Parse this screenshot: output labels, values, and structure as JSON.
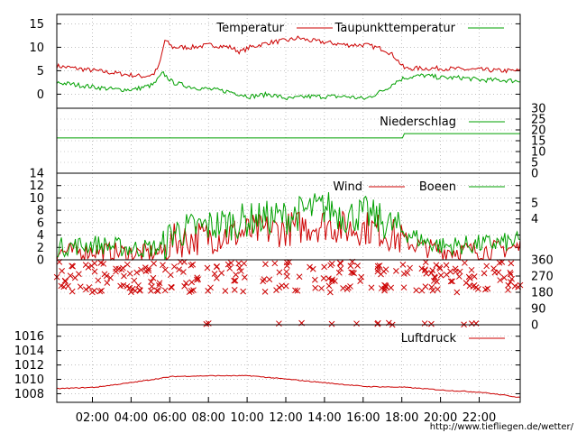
{
  "chart_data": {
    "type": "line",
    "time_ticks": [
      "02:00",
      "04:00",
      "06:00",
      "08:00",
      "10:00",
      "12:00",
      "14:00",
      "16:00",
      "18:00",
      "20:00",
      "22:00"
    ],
    "footer_url": "http://www.tiefliegen.de/wetter/",
    "colors": {
      "red": "#cc0000",
      "green": "#00a000",
      "grid": "#999999"
    },
    "panels": [
      {
        "id": "temperature",
        "ylim": [
          -3,
          17
        ],
        "yticks_left": [
          "15",
          "10",
          "5",
          "0"
        ],
        "yticks_left_values": [
          15,
          10,
          5,
          0
        ],
        "legend": [
          {
            "label": "Temperatur",
            "color": "#cc0000"
          },
          {
            "label": "Taupunkttemperatur",
            "color": "#00a000"
          }
        ],
        "series": [
          {
            "name": "Temperatur",
            "color": "#cc0000",
            "x_hours": [
              0,
              1,
              2,
              3,
              4,
              4.5,
              5,
              5.3,
              5.6,
              6,
              7,
              8,
              9,
              9.5,
              10,
              11,
              12,
              12.5,
              13,
              14,
              15,
              16,
              17,
              17.5,
              18,
              19,
              20,
              21,
              22,
              23,
              24
            ],
            "values": [
              6,
              5.5,
              5,
              4.5,
              4,
              3.8,
              4.2,
              6,
              11.5,
              10,
              10,
              10.5,
              10,
              9,
              10,
              11,
              11.5,
              12,
              11.5,
              11,
              10.5,
              10.5,
              9.5,
              8,
              5.5,
              5.5,
              5.5,
              5.3,
              5.2,
              5,
              5
            ]
          },
          {
            "name": "Taupunkttemperatur",
            "color": "#00a000",
            "x_hours": [
              0,
              1,
              2,
              3,
              4,
              5,
              5.5,
              6,
              7,
              8,
              9,
              10,
              11,
              12,
              13,
              14,
              15,
              16,
              17,
              17.5,
              18,
              19,
              20,
              21,
              22,
              23,
              24
            ],
            "values": [
              2.5,
              2,
              1.5,
              1,
              1,
              2,
              4.5,
              2.5,
              1.5,
              1,
              0.5,
              -0.5,
              0,
              -1,
              -0.5,
              -0.5,
              -0.5,
              -1,
              1,
              2.5,
              3.5,
              4,
              3.5,
              3.5,
              3,
              3,
              2.8
            ]
          }
        ]
      },
      {
        "id": "precipitation",
        "ylim": [
          0,
          30
        ],
        "yticks_right": [
          "30",
          "25",
          "20",
          "15",
          "10",
          "5",
          "0"
        ],
        "yticks_right_values": [
          30,
          25,
          20,
          15,
          10,
          5,
          0
        ],
        "legend": [
          {
            "label": "Niederschlag",
            "color": "#00a000"
          }
        ],
        "series": [
          {
            "name": "Niederschlag",
            "color": "#00a000",
            "x_hours": [
              0,
              17.9,
              18,
              24
            ],
            "values": [
              16.3,
              16.3,
              18.3,
              18.3
            ]
          }
        ]
      },
      {
        "id": "wind",
        "ylim": [
          0,
          14
        ],
        "yticks_left": [
          "14",
          "12",
          "10",
          "8",
          "6",
          "4",
          "2",
          "0"
        ],
        "yticks_left_values": [
          14,
          12,
          10,
          8,
          6,
          4,
          2,
          0
        ],
        "yticks_right": [
          "5",
          "4"
        ],
        "yticks_right_values": [
          9.2,
          6.6
        ],
        "legend": [
          {
            "label": "Wind",
            "color": "#cc0000"
          },
          {
            "label": "Boeen",
            "color": "#00a000"
          }
        ],
        "series": [
          {
            "name": "Wind",
            "color": "#cc0000",
            "x_hours": [
              0,
              2,
              4,
              5.5,
              6,
              8,
              10,
              12,
              13,
              14,
              15,
              16,
              17,
              18,
              19,
              20,
              22,
              24
            ],
            "values": [
              1.2,
              1.5,
              1,
              1.2,
              3,
              3.8,
              4.5,
              5,
              5.5,
              5.8,
              5,
              5.2,
              4.5,
              3,
              2,
              1.5,
              1.5,
              2
            ]
          },
          {
            "name": "Boeen",
            "color": "#00a000",
            "x_hours": [
              0,
              2,
              4,
              5.5,
              6,
              8,
              10,
              12,
              13,
              14,
              15,
              16,
              17,
              18,
              19,
              20,
              22,
              24
            ],
            "values": [
              2,
              2.5,
              1.8,
              2,
              4.5,
              5.5,
              6.5,
              7,
              8,
              8.5,
              7,
              7.5,
              6,
              4.5,
              3,
              2.2,
              2.5,
              3
            ]
          }
        ]
      },
      {
        "id": "direction",
        "ylim": [
          0,
          360
        ],
        "yticks_right": [
          "360",
          "270",
          "180",
          "90",
          "0"
        ],
        "yticks_right_values": [
          360,
          270,
          180,
          90,
          0
        ],
        "legend": [],
        "series": [
          {
            "name": "",
            "color": "#cc0000",
            "marker": "x",
            "bands_deg": [
              [
                290,
                350
              ],
              [
                230,
                300
              ],
              [
                180,
                220
              ],
              [
                0,
                10
              ],
              [
                40,
                60
              ]
            ]
          }
        ]
      },
      {
        "id": "pressure",
        "ylim": [
          1006.8,
          1017.6
        ],
        "yticks_left": [
          "1016",
          "1014",
          "1012",
          "1010",
          "1008"
        ],
        "yticks_left_values": [
          1016,
          1014,
          1012,
          1010,
          1008
        ],
        "legend": [
          {
            "label": "Luftdruck",
            "color": "#cc0000"
          }
        ],
        "series": [
          {
            "name": "Luftdruck",
            "color": "#cc0000",
            "x_hours": [
              0,
              2,
              4,
              6,
              8,
              10,
              12,
              14,
              16,
              18,
              20,
              22,
              24
            ],
            "values": [
              1008.7,
              1008.9,
              1009.6,
              1010.4,
              1010.5,
              1010.5,
              1010,
              1009.5,
              1009,
              1008.9,
              1008.5,
              1008.2,
              1007.5
            ]
          }
        ]
      }
    ]
  }
}
